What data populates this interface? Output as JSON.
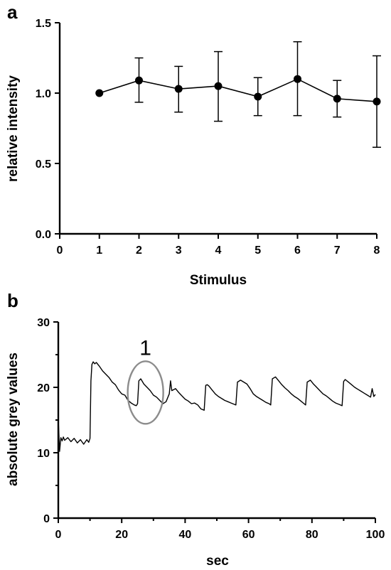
{
  "chart_data": [
    {
      "type": "scatter",
      "panel": "a",
      "xlabel": "Stimulus",
      "ylabel": "relative intensity",
      "xlim": [
        0,
        8
      ],
      "ylim": [
        0,
        1.5
      ],
      "xticks": [
        "0",
        "1",
        "2",
        "3",
        "4",
        "5",
        "6",
        "7",
        "8"
      ],
      "yticks": [
        "0.0",
        "0.5",
        "1.0",
        "1.5"
      ],
      "connected": true,
      "x": [
        1,
        2,
        3,
        4,
        5,
        6,
        7,
        8
      ],
      "y": [
        1.0,
        1.09,
        1.03,
        1.05,
        0.975,
        1.1,
        0.96,
        0.94
      ],
      "err_low": [
        1.0,
        0.935,
        0.865,
        0.8,
        0.84,
        0.84,
        0.83,
        0.615
      ],
      "err_high": [
        1.0,
        1.25,
        1.19,
        1.295,
        1.11,
        1.365,
        1.09,
        1.265
      ]
    },
    {
      "type": "line",
      "panel": "b",
      "xlabel": "sec",
      "ylabel": "absolute grey values",
      "xlim": [
        0,
        100
      ],
      "ylim": [
        0,
        30
      ],
      "xticks": [
        "0",
        "20",
        "40",
        "60",
        "80",
        "100"
      ],
      "yticks": [
        "0",
        "10",
        "20",
        "30"
      ],
      "annotation": {
        "label": "1",
        "x_center": 27.5,
        "y_center": 19.2
      },
      "series": [
        {
          "x": [
            0,
            0.4,
            0.8,
            1.2,
            1.6,
            2.0,
            3.0,
            4.0,
            5.0,
            6.0,
            7.0,
            8.0,
            9.0,
            9.6,
            10.0,
            10.3,
            10.6,
            11.0,
            11.5,
            12.0,
            13.0,
            14.0,
            15.0,
            16.0,
            17.0,
            18.0,
            19.0,
            20.0,
            21.0,
            22.0,
            23.0,
            24.0,
            24.6,
            25.0,
            25.4,
            26.0,
            27.0,
            28.0,
            29.0,
            30.0,
            31.0,
            32.0,
            33.0,
            34.0,
            35.0,
            35.4,
            35.8,
            37.0,
            38.0,
            39.0,
            40.0,
            41.0,
            42.0,
            43.0,
            44.0,
            45.0,
            46.0,
            46.5,
            47.0,
            47.5,
            48.5,
            49.5,
            50.5,
            51.5,
            52.5,
            53.5,
            54.5,
            55.5,
            56.0,
            56.5,
            57.5,
            58.5,
            59.5,
            60.5,
            61.5,
            62.5,
            63.5,
            64.5,
            65.5,
            66.5,
            67.0,
            67.5,
            68.5,
            69.5,
            70.5,
            71.5,
            72.5,
            73.5,
            74.5,
            75.5,
            76.5,
            77.5,
            78.0,
            78.5,
            79.5,
            80.5,
            81.5,
            82.5,
            83.5,
            84.5,
            85.5,
            86.5,
            87.5,
            88.5,
            89.5,
            90.0,
            90.5,
            91.5,
            92.5,
            93.5,
            94.5,
            95.5,
            96.5,
            97.5,
            98.5,
            99.0,
            99.5,
            100.0
          ],
          "y": [
            15.2,
            10.2,
            12.3,
            11.8,
            12.4,
            11.9,
            12.3,
            11.7,
            12.2,
            11.5,
            12.0,
            11.3,
            12.0,
            11.6,
            12.2,
            21.0,
            23.5,
            23.9,
            23.6,
            23.8,
            23.2,
            22.5,
            22.0,
            21.5,
            20.8,
            20.4,
            19.6,
            19.0,
            18.8,
            18.0,
            17.6,
            17.3,
            17.2,
            17.5,
            21.0,
            21.3,
            20.5,
            20.0,
            19.5,
            18.8,
            18.5,
            18.0,
            17.5,
            17.8,
            19.0,
            21.0,
            19.5,
            19.8,
            19.2,
            18.7,
            18.2,
            17.9,
            17.5,
            17.6,
            17.3,
            16.7,
            16.5,
            20.3,
            20.4,
            20.2,
            19.6,
            19.0,
            18.6,
            18.3,
            18.0,
            17.8,
            17.6,
            17.4,
            17.3,
            20.8,
            21.1,
            20.8,
            20.5,
            19.8,
            19.0,
            18.6,
            18.3,
            18.0,
            17.7,
            17.5,
            17.3,
            21.3,
            21.6,
            21.0,
            20.4,
            19.9,
            19.5,
            19.0,
            18.6,
            18.3,
            17.9,
            17.5,
            17.3,
            20.8,
            21.1,
            20.5,
            20.0,
            19.5,
            19.0,
            18.7,
            18.3,
            17.9,
            17.6,
            17.4,
            17.2,
            20.9,
            21.2,
            20.8,
            20.4,
            20.0,
            19.7,
            19.4,
            19.1,
            18.8,
            18.5,
            19.8,
            18.6,
            18.9
          ]
        }
      ]
    }
  ]
}
